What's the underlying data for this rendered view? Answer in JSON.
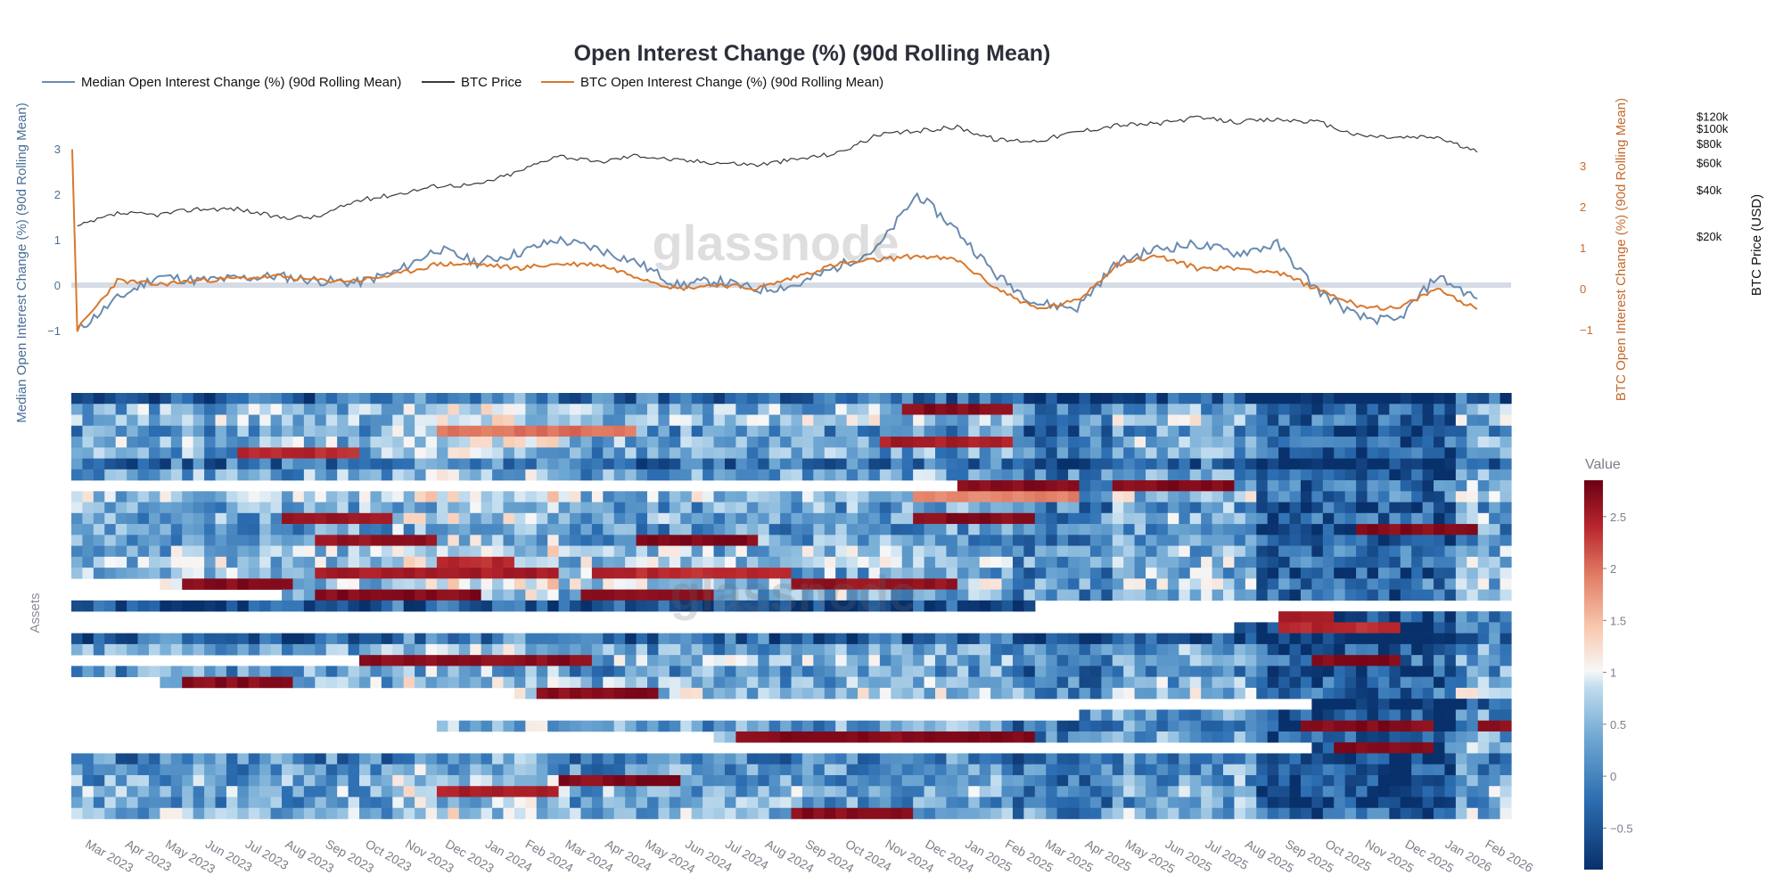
{
  "chart_data": [
    {
      "type": "line",
      "title": "Open Interest Change (%) (90d Rolling Mean)",
      "legend": {
        "placement": "top-left",
        "entries": [
          {
            "name": "Median Open Interest Change (%) (90d Rolling Mean)",
            "color": "#6a8bb0"
          },
          {
            "name": "BTC Price",
            "color": "#3a3a3a"
          },
          {
            "name": "BTC Open Interest Change (%) (90d Rolling Mean)",
            "color": "#d9782d"
          }
        ]
      },
      "x_labels": [
        "Mar 2023",
        "Apr 2023",
        "May 2023",
        "Jun 2023",
        "Jul 2023",
        "Aug 2023",
        "Sep 2023",
        "Oct 2023",
        "Nov 2023",
        "Dec 2023",
        "Jan 2024",
        "Feb 2024",
        "Mar 2024",
        "Apr 2024",
        "May 2024",
        "Jun 2024",
        "Jul 2024",
        "Aug 2024",
        "Sep 2024",
        "Oct 2024",
        "Nov 2024",
        "Dec 2024",
        "Jan 2025",
        "Feb 2025",
        "Mar 2025",
        "Apr 2025",
        "May 2025",
        "Jun 2025",
        "Jul 2025",
        "Aug 2025",
        "Sep 2025",
        "Oct 2025",
        "Nov 2025",
        "Dec 2025",
        "Jan 2026",
        "Feb 2026"
      ],
      "y_left": {
        "label": "Median Open Interest Change (%) (90d Rolling Mean)",
        "ticks": [
          "3",
          "2",
          "1",
          "0",
          "−1"
        ],
        "range": [
          -1.5,
          3.2
        ]
      },
      "y_right": {
        "label": "BTC Open Interest Change (%) (90d Rolling Mean)",
        "ticks": [
          "3",
          "2",
          "1",
          "0",
          "−1"
        ],
        "range": [
          -1.8,
          3.6
        ]
      },
      "y_price": {
        "label": "BTC Price (USD)",
        "ticks": [
          "$120k",
          "$100k",
          "$80k",
          "$60k",
          "$40k",
          "$20k"
        ],
        "scale": "log"
      },
      "series": [
        {
          "name": "Median Open Interest Change (%) (90d Rolling Mean)",
          "axis": "left",
          "values": [
            -1.0,
            -0.3,
            0.2,
            0.1,
            0.15,
            0.2,
            0.1,
            0.05,
            0.3,
            0.8,
            0.5,
            0.7,
            1.0,
            0.8,
            0.5,
            0.0,
            0.1,
            -0.1,
            0.0,
            0.4,
            0.8,
            2.0,
            1.2,
            0.2,
            -0.4,
            -0.5,
            0.5,
            0.8,
            0.9,
            0.7,
            0.9,
            -0.1,
            -0.7,
            -0.8,
            0.2,
            -0.3
          ]
        },
        {
          "name": "BTC Price",
          "axis": "price",
          "values": [
            23000,
            28000,
            27500,
            30000,
            30000,
            26500,
            26500,
            34000,
            37500,
            42500,
            43000,
            52000,
            67000,
            60000,
            67000,
            62000,
            60000,
            58000,
            63000,
            69000,
            90000,
            96000,
            102000,
            84000,
            83000,
            95000,
            105000,
            107000,
            117000,
            110000,
            114000,
            110000,
            90000,
            87000,
            88000,
            70000
          ]
        },
        {
          "name": "BTC Open Interest Change (%) (90d Rolling Mean)",
          "axis": "right",
          "values": [
            -1.0,
            0.2,
            0.1,
            0.2,
            0.25,
            0.3,
            0.2,
            0.2,
            0.35,
            0.6,
            0.6,
            0.5,
            0.6,
            0.6,
            0.3,
            0.0,
            0.1,
            0.0,
            0.3,
            0.6,
            0.7,
            0.8,
            0.7,
            0.0,
            -0.5,
            -0.3,
            0.6,
            0.8,
            0.5,
            0.5,
            0.4,
            0.0,
            -0.4,
            -0.5,
            0.0,
            -0.5
          ]
        }
      ]
    },
    {
      "type": "heatmap",
      "title": "",
      "ylabel": "Assets",
      "colorbar": {
        "title": "Value",
        "ticks": [
          "2.5",
          "2",
          "1.5",
          "1",
          "0.5",
          "0",
          "−0.5"
        ],
        "range": [
          -0.9,
          2.85
        ]
      },
      "rows": [
        {
          "start": 0,
          "end": 36,
          "base": -0.3
        },
        {
          "start": 0,
          "end": 36,
          "base": 0.4,
          "hot": [
            [
              20.5,
              23.5,
              2.8
            ]
          ]
        },
        {
          "start": 0,
          "end": 36,
          "base": 0.6
        },
        {
          "start": 0,
          "end": 36,
          "base": 0.2,
          "hot": [
            [
              9,
              14,
              2.1
            ]
          ]
        },
        {
          "start": 0,
          "end": 36,
          "base": 0.5,
          "hot": [
            [
              20,
              23.5,
              2.6
            ]
          ]
        },
        {
          "start": 0,
          "end": 36,
          "base": 0.3,
          "hot": [
            [
              4,
              7,
              2.5
            ]
          ]
        },
        {
          "start": 0,
          "end": 36,
          "base": -0.2
        },
        {
          "start": 0,
          "end": 36,
          "base": 0.3
        },
        {
          "start": 22,
          "end": 36,
          "base": 0.5,
          "hot": [
            [
              22,
              25,
              2.8
            ],
            [
              26,
              29,
              2.8
            ]
          ]
        },
        {
          "start": 0,
          "end": 36,
          "base": 0.6,
          "hot": [
            [
              21,
              25,
              2.0
            ]
          ]
        },
        {
          "start": 0,
          "end": 36,
          "base": 0.3
        },
        {
          "start": 0,
          "end": 36,
          "base": 0.4,
          "hot": [
            [
              5,
              8,
              2.7
            ],
            [
              21,
              24,
              2.8
            ]
          ]
        },
        {
          "start": 0,
          "end": 36,
          "base": 0.2,
          "hot": [
            [
              32,
              35,
              2.8
            ]
          ]
        },
        {
          "start": 0,
          "end": 36,
          "base": 0.3,
          "hot": [
            [
              6,
              9,
              2.7
            ],
            [
              14,
              17,
              2.8
            ]
          ]
        },
        {
          "start": 0,
          "end": 36,
          "base": 0.5
        },
        {
          "start": 0,
          "end": 36,
          "base": 0.6,
          "hot": [
            [
              9,
              11,
              2.5
            ]
          ]
        },
        {
          "start": 0,
          "end": 36,
          "base": 0.4,
          "hot": [
            [
              6,
              12,
              2.6
            ],
            [
              13,
              18,
              2.5
            ]
          ]
        },
        {
          "start": 2,
          "end": 36,
          "base": 0.6,
          "hot": [
            [
              2.5,
              5.5,
              2.8
            ],
            [
              18,
              22,
              2.7
            ]
          ]
        },
        {
          "start": 5,
          "end": 36,
          "base": 0.5,
          "hot": [
            [
              6,
              10,
              2.8
            ],
            [
              12.5,
              16,
              2.8
            ]
          ]
        },
        {
          "start": 0,
          "end": 24,
          "base": -0.6
        },
        {
          "start": 30,
          "end": 36,
          "base": 0.2,
          "hot": [
            [
              30,
              31.5,
              2.6
            ]
          ]
        },
        {
          "start": 29,
          "end": 36,
          "base": 0.0,
          "hot": [
            [
              30,
              33,
              2.5
            ]
          ]
        },
        {
          "start": 0,
          "end": 36,
          "base": -0.3
        },
        {
          "start": 0,
          "end": 36,
          "base": 0.3
        },
        {
          "start": 7,
          "end": 36,
          "base": 0.5,
          "hot": [
            [
              7,
              13,
              2.8
            ],
            [
              31,
              33,
              2.8
            ]
          ]
        },
        {
          "start": 0,
          "end": 36,
          "base": 0.2
        },
        {
          "start": 2,
          "end": 36,
          "base": 0.4,
          "hot": [
            [
              2.5,
              5.5,
              2.8
            ]
          ]
        },
        {
          "start": 11,
          "end": 36,
          "base": 0.6,
          "hot": [
            [
              11.5,
              14.5,
              2.8
            ]
          ]
        },
        {
          "start": 31,
          "end": 36,
          "base": -0.4
        },
        {
          "start": 25,
          "end": 36,
          "base": 0.3
        },
        {
          "start": 9,
          "end": 36,
          "base": 0.2,
          "hot": [
            [
              30.5,
              34,
              2.8
            ],
            [
              35,
              36,
              2.8
            ]
          ]
        },
        {
          "start": 16,
          "end": 36,
          "base": 0.3,
          "hot": [
            [
              16.5,
              24,
              2.8
            ]
          ]
        },
        {
          "start": 31,
          "end": 36,
          "base": 0.5,
          "hot": [
            [
              31.5,
              34,
              2.8
            ]
          ]
        },
        {
          "start": 0,
          "end": 36,
          "base": 0.0
        },
        {
          "start": 0,
          "end": 36,
          "base": 0.2
        },
        {
          "start": 0,
          "end": 36,
          "base": 0.3,
          "hot": [
            [
              12,
              15,
              2.8
            ]
          ]
        },
        {
          "start": 0,
          "end": 36,
          "base": 0.4,
          "hot": [
            [
              9,
              12,
              2.6
            ]
          ]
        },
        {
          "start": 0,
          "end": 36,
          "base": 0.3
        },
        {
          "start": 0,
          "end": 36,
          "base": 0.5,
          "hot": [
            [
              18,
              21,
              2.8
            ]
          ]
        }
      ]
    }
  ],
  "watermark": "glassnode"
}
